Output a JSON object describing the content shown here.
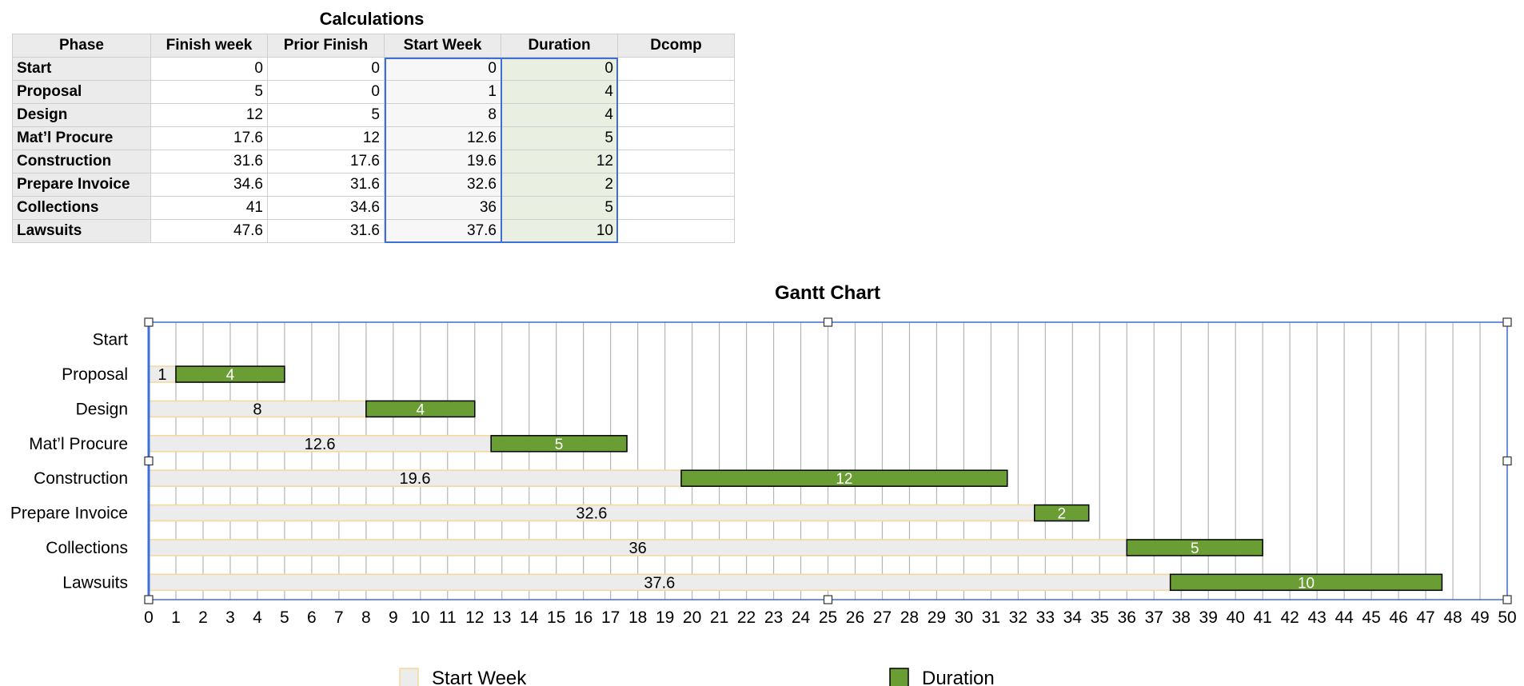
{
  "calculations": {
    "title": "Calculations",
    "headers": [
      "Phase",
      "Finish week",
      "Prior Finish",
      "Start Week",
      "Duration",
      "Dcomp"
    ],
    "rows": [
      {
        "phase": "Start",
        "finish": "0",
        "prior": "0",
        "start": "0",
        "duration": "0",
        "dcomp": ""
      },
      {
        "phase": "Proposal",
        "finish": "5",
        "prior": "0",
        "start": "1",
        "duration": "4",
        "dcomp": ""
      },
      {
        "phase": "Design",
        "finish": "12",
        "prior": "5",
        "start": "8",
        "duration": "4",
        "dcomp": ""
      },
      {
        "phase": "Mat’l Procure",
        "finish": "17.6",
        "prior": "12",
        "start": "12.6",
        "duration": "5",
        "dcomp": ""
      },
      {
        "phase": "Construction",
        "finish": "31.6",
        "prior": "17.6",
        "start": "19.6",
        "duration": "12",
        "dcomp": ""
      },
      {
        "phase": "Prepare Invoice",
        "finish": "34.6",
        "prior": "31.6",
        "start": "32.6",
        "duration": "2",
        "dcomp": ""
      },
      {
        "phase": "Collections",
        "finish": "41",
        "prior": "34.6",
        "start": "36",
        "duration": "5",
        "dcomp": ""
      },
      {
        "phase": "Lawsuits",
        "finish": "47.6",
        "prior": "31.6",
        "start": "37.6",
        "duration": "10",
        "dcomp": ""
      }
    ]
  },
  "chart_data": {
    "type": "bar",
    "orientation": "horizontal",
    "stacked": true,
    "title": "Gantt Chart",
    "categories": [
      "Start",
      "Proposal",
      "Design",
      "Mat’l Procure",
      "Construction",
      "Prepare Invoice",
      "Collections",
      "Lawsuits"
    ],
    "series": [
      {
        "name": "Start Week",
        "values": [
          0,
          1,
          8,
          12.6,
          19.6,
          32.6,
          36,
          37.6
        ],
        "color": "#ececec",
        "stroke": "#f5d79a"
      },
      {
        "name": "Duration",
        "values": [
          0,
          4,
          4,
          5,
          12,
          2,
          5,
          10
        ],
        "color": "#6a9e35",
        "stroke": "#000000"
      }
    ],
    "xlim": [
      0,
      50
    ],
    "xticks": [
      0,
      1,
      2,
      3,
      4,
      5,
      6,
      7,
      8,
      9,
      10,
      11,
      12,
      13,
      14,
      15,
      16,
      17,
      18,
      19,
      20,
      21,
      22,
      23,
      24,
      25,
      26,
      27,
      28,
      29,
      30,
      31,
      32,
      33,
      34,
      35,
      36,
      37,
      38,
      39,
      40,
      41,
      42,
      43,
      44,
      45,
      46,
      47,
      48,
      49,
      50
    ],
    "grid": "vertical",
    "legend": "bottom",
    "xlabel": "",
    "ylabel": "",
    "selection_color": "#3e6fd6"
  }
}
